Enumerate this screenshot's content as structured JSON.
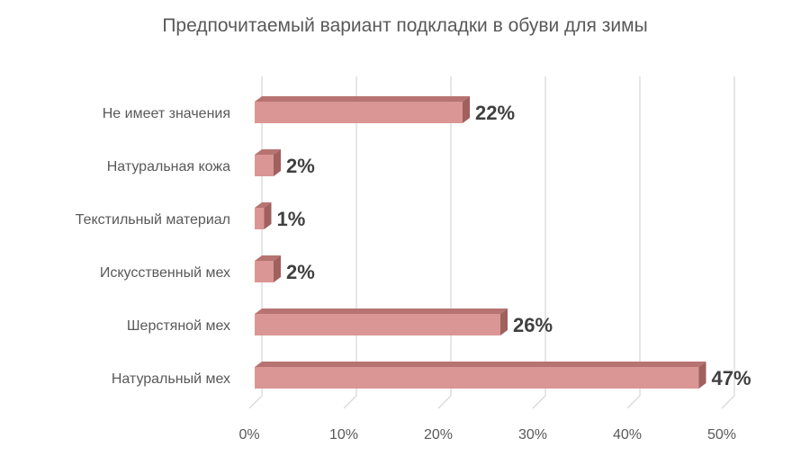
{
  "chart_data": {
    "type": "bar",
    "orientation": "horizontal",
    "style": "3d",
    "title": "Предпочитаемый вариант подкладки в обуви для зимы",
    "xlabel": "",
    "ylabel": "",
    "categories": [
      "Не имеет значения",
      "Натуральная кожа",
      "Текстильный материал",
      "Искусственный мех",
      "Шерстяной мех",
      "Натуральный мех"
    ],
    "values": [
      22,
      2,
      1,
      2,
      26,
      47
    ],
    "data_labels": [
      "22%",
      "2%",
      "1%",
      "2%",
      "26%",
      "47%"
    ],
    "xlim": [
      0,
      50
    ],
    "xticks": [
      "0%",
      "10%",
      "20%",
      "30%",
      "40%",
      "50%"
    ],
    "grid": "vertical",
    "legend": "none",
    "colors": {
      "bar_front": "#da9694",
      "bar_top": "#b77371",
      "bar_side": "#a0605e",
      "gridline": "#d9d9d9",
      "axis_text": "#595959",
      "data_label": "#404040"
    }
  }
}
